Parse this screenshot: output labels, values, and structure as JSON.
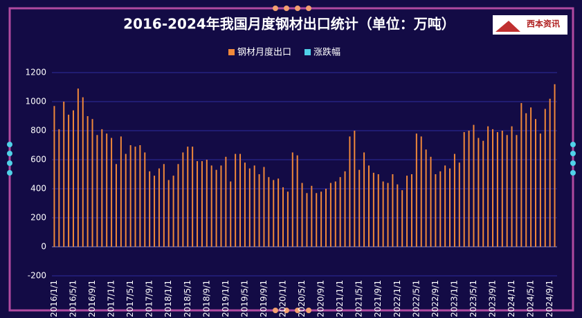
{
  "chart_data": {
    "type": "bar",
    "title": "2016-2024年我国月度钢材出口统计（单位：万吨）",
    "logo": "西本资讯",
    "categories": [
      "2016/1/1",
      null,
      null,
      null,
      "2016/5/1",
      null,
      null,
      null,
      "2016/9/1",
      null,
      null,
      null,
      "2017/1/1",
      null,
      null,
      null,
      "2017/5/1",
      null,
      null,
      null,
      "2017/9/1",
      null,
      null,
      null,
      "2018/1/1",
      null,
      null,
      null,
      "2018/5/1",
      null,
      null,
      null,
      "2018/9/1",
      null,
      null,
      null,
      "2019/1/1",
      null,
      null,
      null,
      "2019/5/1",
      null,
      null,
      null,
      "2019/9/1",
      null,
      null,
      null,
      "2020/1/1",
      null,
      null,
      null,
      "2020/5/1",
      null,
      null,
      null,
      "2020/9/1",
      null,
      null,
      null,
      "2021/1/1",
      null,
      null,
      null,
      "2021/5/1",
      null,
      null,
      null,
      "2021/9/1",
      null,
      null,
      null,
      "2022/1/1",
      null,
      null,
      null,
      "2022/5/1",
      null,
      null,
      null,
      "2022/9/1",
      null,
      null,
      null,
      "2023/1/1",
      null,
      null,
      null,
      "2023/5/1",
      null,
      null,
      null,
      "2023/9/1",
      null,
      null,
      null,
      "2024/1/1",
      null,
      null,
      null,
      "2024/5/1",
      null,
      null,
      null,
      "2024/9/1",
      null
    ],
    "series": [
      {
        "name": "钢材月度出口",
        "color": "#f0883a",
        "values": [
          970,
          810,
          1000,
          910,
          940,
          1090,
          1030,
          900,
          880,
          770,
          810,
          780,
          750,
          570,
          760,
          640,
          700,
          690,
          700,
          650,
          520,
          490,
          540,
          570,
          460,
          490,
          570,
          650,
          690,
          690,
          590,
          590,
          600,
          560,
          530,
          560,
          620,
          450,
          640,
          640,
          580,
          540,
          560,
          500,
          550,
          480,
          460,
          470,
          410,
          380,
          650,
          630,
          440,
          370,
          420,
          370,
          380,
          400,
          440,
          450,
          480,
          520,
          760,
          800,
          530,
          650,
          560,
          510,
          500,
          450,
          440,
          500,
          430,
          390,
          490,
          500,
          780,
          760,
          670,
          620,
          500,
          520,
          560,
          540,
          640,
          580,
          790,
          800,
          840,
          750,
          730,
          830,
          810,
          790,
          800,
          770,
          830,
          770,
          990,
          920,
          960,
          880,
          780,
          950,
          1020,
          1120
        ]
      },
      {
        "name": "涨跌幅",
        "color": "#4fd1e8",
        "values": [
          null,
          null,
          null,
          null,
          null,
          null,
          null,
          null,
          null,
          null,
          null,
          null,
          null,
          null,
          null,
          null,
          null,
          null,
          null,
          null,
          null,
          null,
          null,
          null,
          null,
          null,
          null,
          null,
          null,
          null,
          null,
          null,
          null,
          null,
          null,
          null,
          null,
          null,
          null,
          null,
          null,
          null,
          null,
          null,
          null,
          null,
          null,
          null,
          null,
          null,
          null,
          null,
          null,
          null,
          null,
          null,
          null,
          null,
          null,
          null,
          null,
          null,
          null,
          null,
          null,
          null,
          null,
          null,
          null,
          null,
          null,
          null,
          null,
          null,
          null,
          null,
          null,
          null,
          null,
          null,
          null,
          null,
          null,
          null,
          null,
          null,
          null,
          null,
          null,
          null,
          null,
          null,
          null,
          null,
          null,
          null,
          null,
          null,
          null,
          null,
          null,
          null,
          null,
          null,
          null,
          null
        ]
      }
    ],
    "ylim": [
      -200,
      1200
    ],
    "yticks": [
      -200,
      0,
      200,
      400,
      600,
      800,
      1000,
      1200
    ],
    "grid": true
  }
}
